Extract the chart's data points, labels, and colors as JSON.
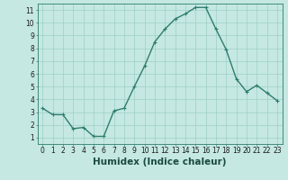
{
  "x": [
    0,
    1,
    2,
    3,
    4,
    5,
    6,
    7,
    8,
    9,
    10,
    11,
    12,
    13,
    14,
    15,
    16,
    17,
    18,
    19,
    20,
    21,
    22,
    23
  ],
  "y": [
    3.3,
    2.8,
    2.8,
    1.7,
    1.8,
    1.1,
    1.1,
    3.1,
    3.3,
    5.0,
    6.6,
    8.5,
    9.5,
    10.3,
    10.7,
    11.2,
    11.2,
    9.5,
    7.9,
    5.6,
    4.6,
    5.1,
    4.5,
    3.9
  ],
  "line_color": "#2e7d6e",
  "marker": "+",
  "marker_size": 3,
  "marker_color": "#2e7d6e",
  "bg_color": "#c5e8e2",
  "grid_color": "#9ecfc8",
  "xlabel": "Humidex (Indice chaleur)",
  "xlim": [
    -0.5,
    23.5
  ],
  "ylim": [
    0.5,
    11.5
  ],
  "yticks": [
    1,
    2,
    3,
    4,
    5,
    6,
    7,
    8,
    9,
    10,
    11
  ],
  "xticks": [
    0,
    1,
    2,
    3,
    4,
    5,
    6,
    7,
    8,
    9,
    10,
    11,
    12,
    13,
    14,
    15,
    16,
    17,
    18,
    19,
    20,
    21,
    22,
    23
  ],
  "tick_label_fontsize": 5.5,
  "xlabel_fontsize": 7.5,
  "line_width": 1.0
}
